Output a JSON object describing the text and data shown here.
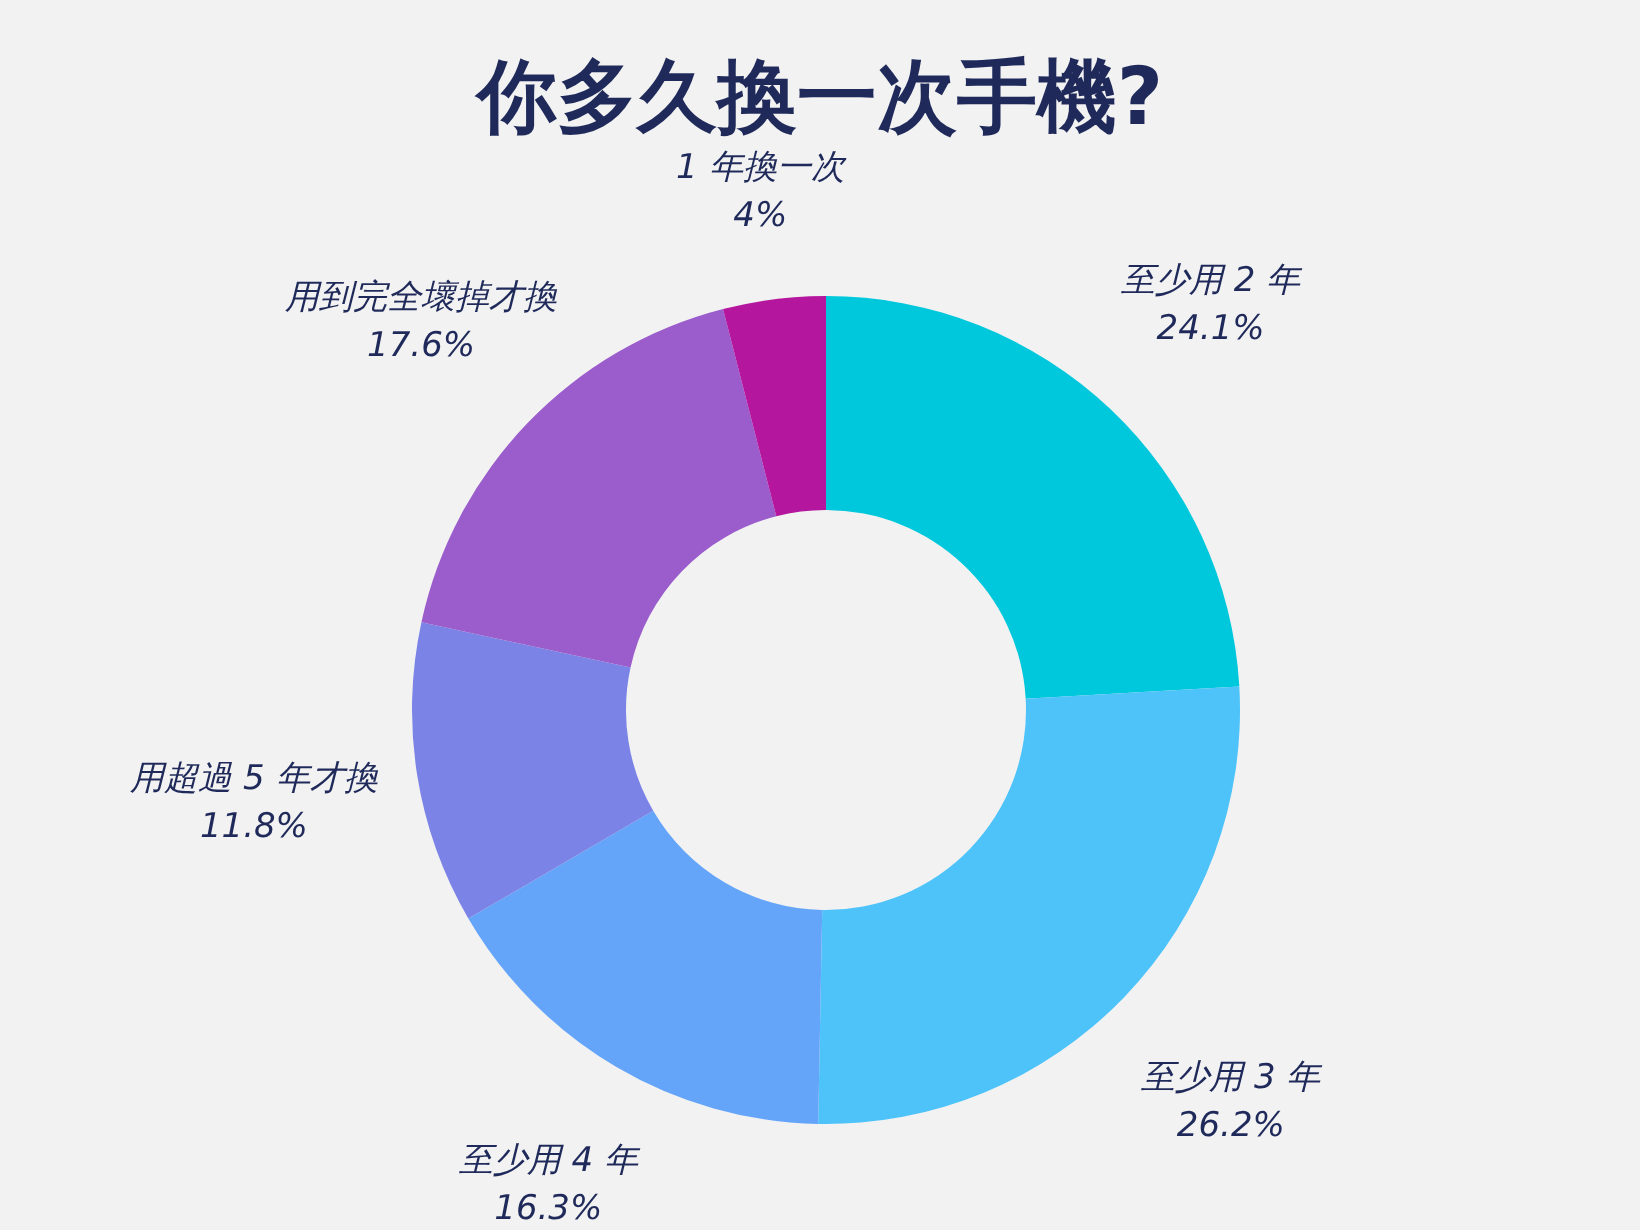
{
  "chart_data": {
    "type": "donut",
    "title": "你多久換一次手機?",
    "categories": [
      "至少用 2 年",
      "至少用 3 年",
      "至少用 4 年",
      "用超過 5 年才換",
      "用到完全壞掉才換",
      "1 年換一次"
    ],
    "values": [
      24.1,
      26.2,
      16.3,
      11.8,
      17.6,
      4
    ],
    "value_labels": [
      "24.1%",
      "26.2%",
      "16.3%",
      "11.8%",
      "17.6%",
      "4%"
    ],
    "colors": [
      "#00c8dc",
      "#4dc3fa",
      "#64a5fa",
      "#7b84e6",
      "#9b5ccc",
      "#b5169e"
    ],
    "legend": false
  }
}
